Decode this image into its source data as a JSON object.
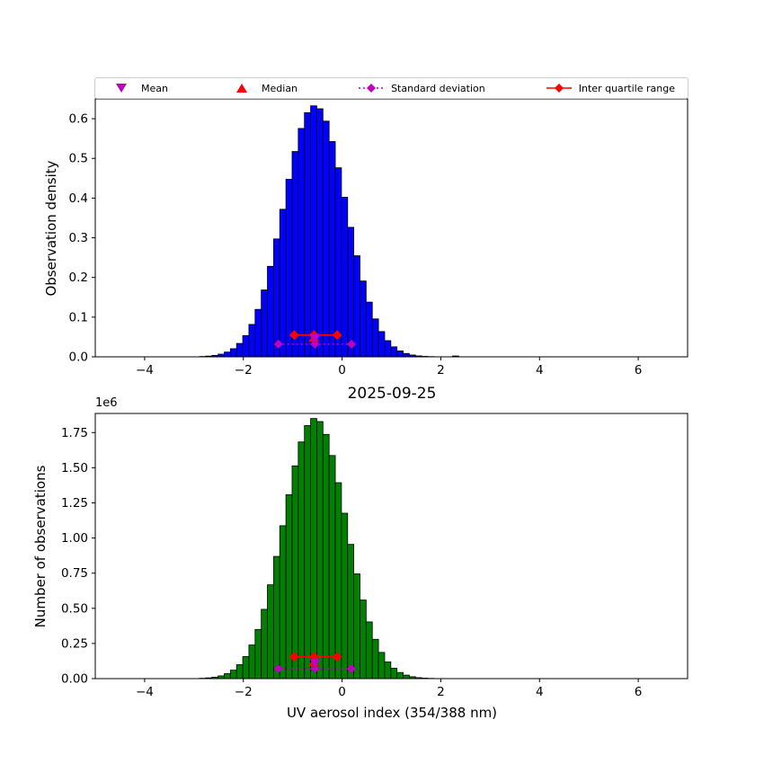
{
  "colors": {
    "magenta": "#bf00bf",
    "red": "#ff0000",
    "blue_bar": "#0000ff",
    "green_bar": "#008000",
    "bar_edge": "#000000",
    "axes": "#000000"
  },
  "legend": {
    "items": [
      {
        "label": "Mean",
        "marker": "triangle-down",
        "line": "none",
        "color": "#bf00bf"
      },
      {
        "label": "Median",
        "marker": "triangle-up",
        "line": "none",
        "color": "#ff0000"
      },
      {
        "label": "Standard deviation",
        "marker": "diamond",
        "line": "dotted",
        "color": "#bf00bf"
      },
      {
        "label": "Inter quartile range",
        "marker": "diamond",
        "line": "solid",
        "color": "#ff0000"
      }
    ]
  },
  "chart_data": [
    {
      "id": "observation-density-histogram",
      "type": "bar",
      "title": "",
      "xlabel": "",
      "ylabel": "Observation density",
      "xlim": [
        -5,
        7
      ],
      "ylim": [
        0,
        0.65
      ],
      "x_tick_values": [
        -4,
        -2,
        0,
        2,
        4,
        6
      ],
      "x_tick_labels": [
        "−4",
        "−2",
        "0",
        "2",
        "4",
        "6"
      ],
      "y_tick_values": [
        0.0,
        0.1,
        0.2,
        0.3,
        0.4,
        0.5,
        0.6
      ],
      "y_tick_labels": [
        "0.0",
        "0.1",
        "0.2",
        "0.3",
        "0.4",
        "0.5",
        "0.6"
      ],
      "bar_color": "#0000ff",
      "bar_edge_color": "#000000",
      "bin_width": 0.125,
      "bin_centers": [
        -3.2,
        -3.075,
        -2.95,
        -2.825,
        -2.7,
        -2.575,
        -2.45,
        -2.325,
        -2.2,
        -2.075,
        -1.95,
        -1.825,
        -1.7,
        -1.575,
        -1.45,
        -1.325,
        -1.2,
        -1.075,
        -0.95,
        -0.825,
        -0.7,
        -0.575,
        -0.45,
        -0.325,
        -0.2,
        -0.075,
        0.05,
        0.175,
        0.3,
        0.425,
        0.55,
        0.675,
        0.8,
        0.925,
        1.05,
        1.175,
        1.3,
        1.425,
        1.55,
        1.675,
        1.8,
        1.925,
        2.05,
        2.175,
        2.3
      ],
      "values": [
        0.0001,
        0.0002,
        0.0004,
        0.0009,
        0.0019,
        0.0036,
        0.0067,
        0.012,
        0.0205,
        0.0338,
        0.0536,
        0.0817,
        0.1196,
        0.1685,
        0.2281,
        0.2971,
        0.3718,
        0.4473,
        0.5174,
        0.5755,
        0.6153,
        0.6325,
        0.6251,
        0.5939,
        0.5425,
        0.4764,
        0.4022,
        0.3264,
        0.2547,
        0.1911,
        0.1379,
        0.0956,
        0.0637,
        0.0408,
        0.0252,
        0.0149,
        0.0085,
        0.0046,
        0.0024,
        0.0012,
        0.0006,
        0.0003,
        0.0002,
        0.0001,
        0.0021
      ],
      "stats": {
        "mean": {
          "x": -0.55,
          "y": 0.046
        },
        "median": {
          "x": -0.57,
          "y": 0.049
        },
        "std": {
          "x1": -1.29,
          "x2": 0.19,
          "y": 0.032
        },
        "iqr": {
          "x1": -0.97,
          "x2": -0.1,
          "y": 0.055
        }
      }
    },
    {
      "id": "observation-count-histogram",
      "type": "bar",
      "title": "2025-09-25",
      "xlabel": "UV aerosol index (354/388 nm)",
      "ylabel": "Number of observations",
      "y_offset_label": "1e6",
      "y_unit": "1e6",
      "xlim": [
        -5,
        7
      ],
      "ylim": [
        0,
        1.886
      ],
      "x_tick_values": [
        -4,
        -2,
        0,
        2,
        4,
        6
      ],
      "x_tick_labels": [
        "−4",
        "−2",
        "0",
        "2",
        "4",
        "6"
      ],
      "y_tick_values": [
        0.0,
        0.25,
        0.5,
        0.75,
        1.0,
        1.25,
        1.5,
        1.75
      ],
      "y_tick_labels": [
        "0.00",
        "0.25",
        "0.50",
        "0.75",
        "1.00",
        "1.25",
        "1.50",
        "1.75"
      ],
      "bar_color": "#008000",
      "bar_edge_color": "#000000",
      "bin_width": 0.125,
      "bin_centers": [
        -3.2,
        -3.075,
        -2.95,
        -2.825,
        -2.7,
        -2.575,
        -2.45,
        -2.325,
        -2.2,
        -2.075,
        -1.95,
        -1.825,
        -1.7,
        -1.575,
        -1.45,
        -1.325,
        -1.2,
        -1.075,
        -0.95,
        -0.825,
        -0.7,
        -0.575,
        -0.45,
        -0.325,
        -0.2,
        -0.075,
        0.05,
        0.175,
        0.3,
        0.425,
        0.55,
        0.675,
        0.8,
        0.925,
        1.05,
        1.175,
        1.3,
        1.425,
        1.55,
        1.675,
        1.8,
        1.925,
        2.05,
        2.175,
        2.3
      ],
      "values": [
        0.0003,
        0.0006,
        0.0012,
        0.0026,
        0.0056,
        0.0105,
        0.0196,
        0.0351,
        0.06,
        0.0989,
        0.1568,
        0.239,
        0.3498,
        0.4929,
        0.6672,
        0.869,
        1.0875,
        1.3083,
        1.5134,
        1.6834,
        1.7998,
        1.8501,
        1.8284,
        1.7372,
        1.5868,
        1.3935,
        1.1764,
        0.9547,
        0.745,
        0.559,
        0.4034,
        0.2796,
        0.1863,
        0.1193,
        0.0737,
        0.0436,
        0.0249,
        0.0135,
        0.007,
        0.0035,
        0.0018,
        0.0009,
        0.0005,
        0.0003,
        0.0002
      ],
      "stats": {
        "mean": {
          "x": -0.55,
          "y": 0.11
        },
        "median": {
          "x": -0.57,
          "y": 0.12
        },
        "std": {
          "x1": -1.29,
          "x2": 0.19,
          "y": 0.07
        },
        "iqr": {
          "x1": -0.97,
          "x2": -0.1,
          "y": 0.155
        }
      }
    }
  ]
}
